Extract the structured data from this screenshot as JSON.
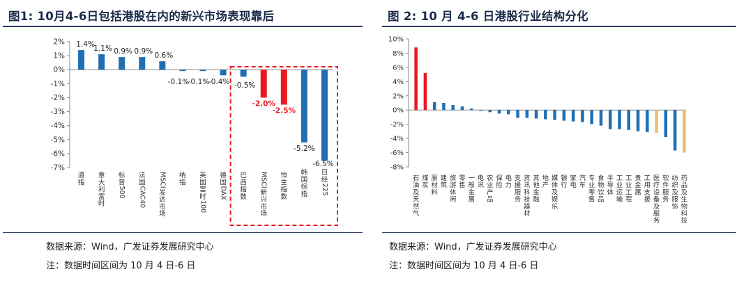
{
  "left": {
    "title": "图1:  10月4-6日包括港股在内的新兴市场表现靠后",
    "source": "数据来源：Wind，广发证券发展研究中心",
    "note": "注：数据时间区间为 10 月 4 日-6 日",
    "chart_data": {
      "type": "bar",
      "categories": [
        "道指",
        "意大利富时",
        "标普500",
        "法国CAC40",
        "MSCI发达市场",
        "纳指",
        "英国富时100",
        "德国DAX",
        "巴西指数",
        "MSCI新兴市场",
        "恒生指数",
        "韩国综指",
        "日经225"
      ],
      "values": [
        1.4,
        1.1,
        0.9,
        0.9,
        0.6,
        -0.1,
        -0.1,
        -0.4,
        -0.5,
        -2.0,
        -2.5,
        -5.2,
        -6.5
      ],
      "value_labels": [
        "1.4%",
        "1.1%",
        "0.9%",
        "0.9%",
        "0.6%",
        "-0.1%",
        "-0.1%",
        "-0.4%",
        "-0.5%",
        "-2.0%",
        "-2.5%",
        "-5.2%",
        "-6.5%"
      ],
      "highlight_red": [
        9,
        10
      ],
      "highlight_box": [
        8,
        9,
        10,
        11,
        12
      ],
      "yticks": [
        "2%",
        "1%",
        "0%",
        "-1%",
        "-2%",
        "-3%",
        "-4%",
        "-5%",
        "-6%",
        "-7%"
      ],
      "ylim": [
        -7,
        2
      ],
      "colors": {
        "default": "#1f6fb2",
        "highlight": "#e8191f",
        "box": "#e8191f"
      }
    }
  },
  "right": {
    "title": "图 2:  10 月 4-6 日港股行业结构分化",
    "source": "数据来源：Wind，广发证券发展研究中心",
    "note": "注：数据时间区间为 10 月 4 日-6 日",
    "chart_data": {
      "type": "bar",
      "categories": [
        "石油及天然气",
        "煤炭",
        "原材料",
        "建筑",
        "旅游休闲",
        "零售",
        "一般金属",
        "电讯",
        "农业产品",
        "保险",
        "电力",
        "支援服务",
        "资讯科技器材",
        "其他金融",
        "地产",
        "媒体及娱乐",
        "银行",
        "家电",
        "汽车",
        "专业零售",
        "食物饮品",
        "半导体",
        "工业运输",
        "工业工程",
        "贵金属",
        "工用支援",
        "医疗设备及服务",
        "软件服务",
        "纺织及服饰",
        "药品及生物科技"
      ],
      "values": [
        8.8,
        5.2,
        1.1,
        1.0,
        0.7,
        0.5,
        0.2,
        -0.1,
        -0.3,
        -0.5,
        -0.6,
        -1.1,
        -1.1,
        -1.2,
        -1.3,
        -1.4,
        -1.5,
        -1.6,
        -1.7,
        -2.0,
        -2.2,
        -2.7,
        -2.7,
        -2.8,
        -3.0,
        -3.1,
        -3.2,
        -3.8,
        -5.7,
        -6.0
      ],
      "color_groups": [
        "red",
        "red",
        "blue",
        "blue",
        "blue",
        "blue",
        "blue",
        "blue",
        "blue",
        "blue",
        "blue",
        "blue",
        "blue",
        "blue",
        "blue",
        "blue",
        "blue",
        "blue",
        "blue",
        "blue",
        "blue",
        "blue",
        "blue",
        "blue",
        "blue",
        "blue",
        "gold",
        "blue",
        "blue",
        "gold"
      ],
      "yticks": [
        "10%",
        "8%",
        "6%",
        "4%",
        "2%",
        "0%",
        "-2%",
        "-4%",
        "-6%",
        "-8%"
      ],
      "ylim": [
        -8,
        10
      ],
      "colors": {
        "blue": "#1f6fb2",
        "red": "#e8191f",
        "gold": "#e6c06a"
      }
    }
  }
}
